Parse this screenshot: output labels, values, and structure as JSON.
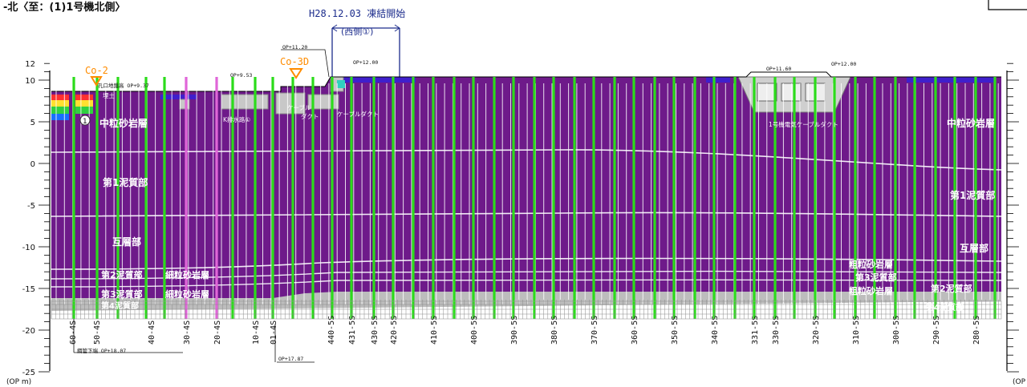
{
  "header": {
    "title": "-北〈至：(1)1号機北側〉",
    "freeze_date": "H28.12.03 凍結開始",
    "freeze_side": "(西側①)"
  },
  "axis": {
    "unit_left": "(OP m)",
    "unit_right": "(OP",
    "ticks": [
      {
        "value": 12,
        "label": "12"
      },
      {
        "value": 10,
        "label": "10"
      },
      {
        "value": 5,
        "label": "5"
      },
      {
        "value": 0,
        "label": "0"
      },
      {
        "value": -5,
        "label": "-5"
      },
      {
        "value": -10,
        "label": "-10"
      },
      {
        "value": -15,
        "label": "-15"
      },
      {
        "value": -20,
        "label": "-20"
      },
      {
        "value": -25,
        "label": "-25"
      }
    ]
  },
  "boreholes": [
    {
      "label": "Co-2"
    },
    {
      "label": "Co-3D"
    }
  ],
  "elevations": [
    "孔口地盤高 OP+9.37",
    "OP+9.53",
    "OP+11.20",
    "OP+12.00",
    "OP+11.60",
    "OP+12.00",
    "OP+17.87",
    "鋼管下端 OP+18.07"
  ],
  "structures": [
    "K排水路①",
    "ケーブル",
    "ダクト",
    "ケーブルダクト",
    "1号機電気ケーブルダクト",
    "埋土"
  ],
  "layers_left": [
    "中粒砂岩層",
    "第1泥質部",
    "互層部",
    "第2泥質部",
    "細粒砂岩層",
    "第3泥質部",
    "細粒砂岩層",
    "第4泥質部"
  ],
  "layers_right": [
    "中粒砂岩層",
    "第1泥質部",
    "互層部",
    "粗粒砂岩層",
    "第3泥質部",
    "粗粒砂岩層",
    "第2泥質部",
    "第4泥質部"
  ],
  "pipes": [
    {
      "label": "60-4S"
    },
    {
      "label": "50-4S"
    },
    {
      "label": "40-4S"
    },
    {
      "label": "30-4S"
    },
    {
      "label": "20-4S"
    },
    {
      "label": "10-4S"
    },
    {
      "label": "01-4S"
    },
    {
      "label": "440-5S"
    },
    {
      "label": "431-5S"
    },
    {
      "label": "430-5S"
    },
    {
      "label": "420-5S"
    },
    {
      "label": "410-5S"
    },
    {
      "label": "400-5S"
    },
    {
      "label": "390-5S"
    },
    {
      "label": "380-5S"
    },
    {
      "label": "370-5S"
    },
    {
      "label": "360-5S"
    },
    {
      "label": "350-5S"
    },
    {
      "label": "340-5S"
    },
    {
      "label": "331-5S"
    },
    {
      "label": "330-5S"
    },
    {
      "label": "320-5S"
    },
    {
      "label": "310-5S"
    },
    {
      "label": "300-5S"
    },
    {
      "label": "290-5S"
    },
    {
      "label": "280-5S"
    }
  ],
  "colors": {
    "ground": "#6e1a8a",
    "frozen": "#2bdc1a",
    "pink": "#e066d8",
    "orange": "#ff8c00",
    "navy": "#1c2c8c",
    "gray": "#b4b4b4"
  }
}
